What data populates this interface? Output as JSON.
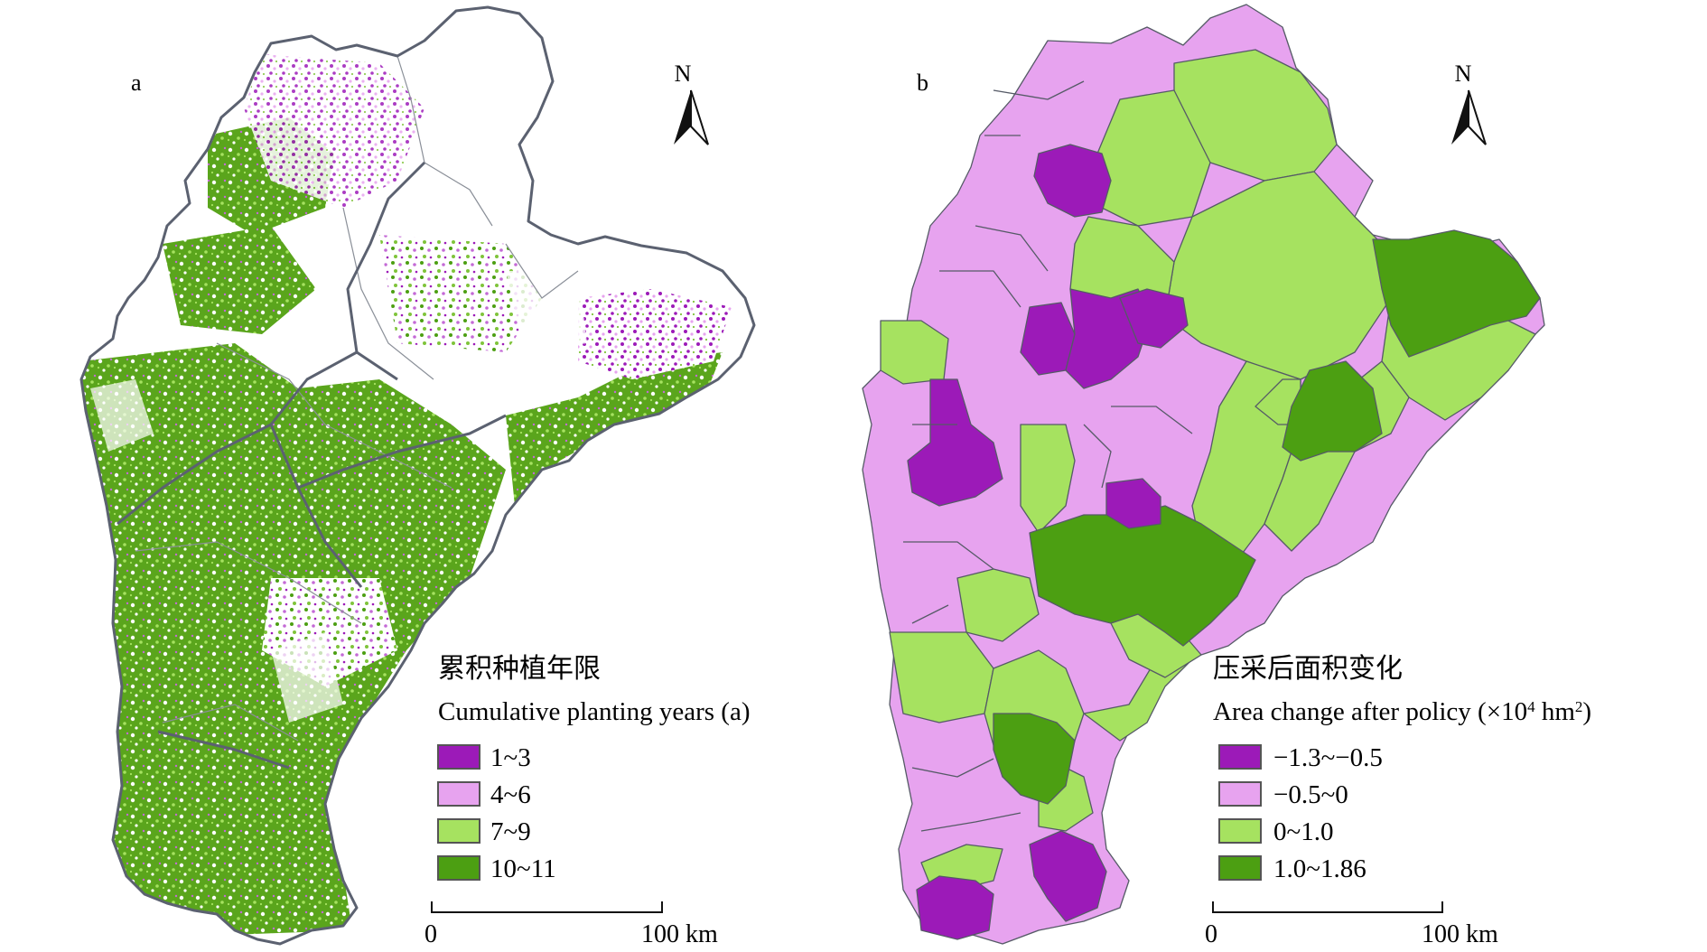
{
  "panel_a": {
    "label": "a",
    "north_label": "N",
    "legend": {
      "title_cn": "累积种植年限",
      "title_en": "Cumulative planting years (a)",
      "items": [
        {
          "label": "1~3",
          "color": "#9c1ab8"
        },
        {
          "label": "4~6",
          "color": "#e7a3ef"
        },
        {
          "label": "7~9",
          "color": "#a6e260"
        },
        {
          "label": "10~11",
          "color": "#4c9f12"
        }
      ]
    },
    "scale": {
      "start": "0",
      "end": "100 km"
    }
  },
  "panel_b": {
    "label": "b",
    "north_label": "N",
    "legend": {
      "title_cn": "压采后面积变化",
      "title_en_prefix": "Area change after policy (×10",
      "title_en_sup1": "4",
      "title_en_mid": " hm",
      "title_en_sup2": "2",
      "title_en_suffix": ")",
      "items": [
        {
          "label": "−1.3~−0.5",
          "color": "#9c1ab8"
        },
        {
          "label": "−0.5~0",
          "color": "#e7a3ef"
        },
        {
          "label": "0~1.0",
          "color": "#a6e260"
        },
        {
          "label": "1.0~1.86",
          "color": "#4c9f12"
        }
      ]
    },
    "scale": {
      "start": "0",
      "end": "100 km"
    }
  }
}
